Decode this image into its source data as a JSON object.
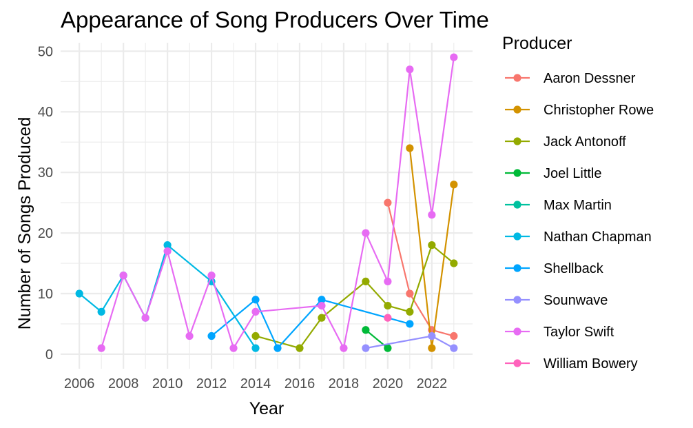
{
  "chart_data": {
    "type": "line",
    "title": "Appearance of Song Producers Over Time",
    "xlabel": "Year",
    "ylabel": "Number of Songs Produced",
    "xlim": [
      2005.15,
      2023.85
    ],
    "ylim": [
      -2.4,
      51.4
    ],
    "x_ticks": [
      2006,
      2008,
      2010,
      2012,
      2014,
      2016,
      2018,
      2020,
      2022
    ],
    "y_ticks": [
      0,
      10,
      20,
      30,
      40,
      50
    ],
    "grid": true,
    "legend": {
      "title": "Producer",
      "position": "right"
    },
    "series": [
      {
        "name": "Aaron Dessner",
        "color": "#F8766D",
        "x": [
          2020,
          2021,
          2022,
          2023
        ],
        "y": [
          25,
          10,
          4,
          3
        ]
      },
      {
        "name": "Christopher Rowe",
        "color": "#D39200",
        "x": [
          2021,
          2022,
          2023
        ],
        "y": [
          34,
          1,
          28
        ]
      },
      {
        "name": "Jack Antonoff",
        "color": "#93AA00",
        "x": [
          2014,
          2016,
          2017,
          2019,
          2020,
          2021,
          2022,
          2023
        ],
        "y": [
          3,
          1,
          6,
          12,
          8,
          7,
          18,
          15
        ]
      },
      {
        "name": "Joel Little",
        "color": "#00BA38",
        "x": [
          2019,
          2020
        ],
        "y": [
          4,
          1
        ]
      },
      {
        "name": "Max Martin",
        "color": "#00C19F",
        "x": [],
        "y": []
      },
      {
        "name": "Nathan Chapman",
        "color": "#00B9E3",
        "x": [
          2006,
          2007,
          2008,
          2009,
          2010,
          2012,
          2014
        ],
        "y": [
          10,
          7,
          13,
          6,
          18,
          12,
          1
        ]
      },
      {
        "name": "Shellback",
        "color": "#00A5FF",
        "x": [
          2012,
          2014,
          2015,
          2017,
          2021
        ],
        "y": [
          3,
          9,
          1,
          9,
          5
        ]
      },
      {
        "name": "Sounwave",
        "color": "#9590FF",
        "x": [
          2019,
          2022,
          2023
        ],
        "y": [
          1,
          3,
          1
        ]
      },
      {
        "name": "Taylor Swift",
        "color": "#E76BF3",
        "x": [
          2007,
          2008,
          2009,
          2010,
          2011,
          2012,
          2013,
          2014,
          2017,
          2018,
          2019,
          2020,
          2021,
          2022,
          2023
        ],
        "y": [
          1,
          13,
          6,
          17,
          3,
          13,
          1,
          7,
          8,
          1,
          20,
          12,
          47,
          23,
          49
        ]
      },
      {
        "name": "William Bowery",
        "color": "#FF62BC",
        "x": [
          2020
        ],
        "y": [
          6
        ]
      }
    ]
  }
}
